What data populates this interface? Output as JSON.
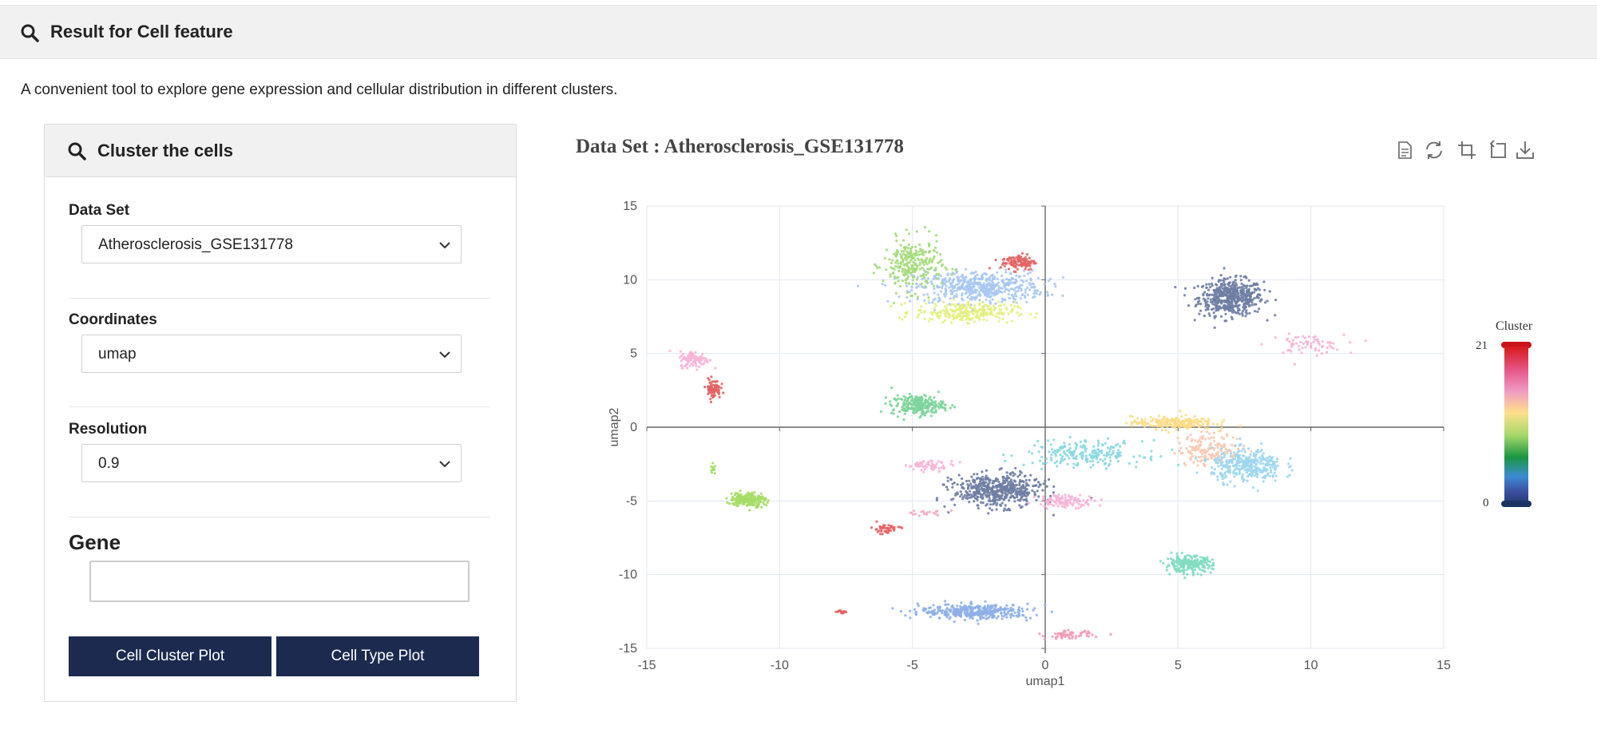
{
  "header": {
    "title": "Result for Cell feature",
    "icon": "search-icon"
  },
  "intro": "A convenient tool to explore gene expression and cellular distribution in different clusters.",
  "panel": {
    "title": "Cluster the cells",
    "icon": "search-icon",
    "fields": [
      {
        "label": "Data Set",
        "value": "Atherosclerosis_GSE131778"
      },
      {
        "label": "Coordinates",
        "value": "umap"
      },
      {
        "label": "Resolution",
        "value": "0.9"
      }
    ],
    "gene": {
      "label": "Gene",
      "value": "",
      "placeholder": ""
    },
    "buttons": {
      "cluster_plot": "Cell Cluster Plot",
      "type_plot": "Cell Type Plot"
    }
  },
  "plot": {
    "title": "Data Set : Atherosclerosis_GSE131778",
    "toolbox": [
      "data-view-icon",
      "restore-icon",
      "zoom-icon",
      "zoom-reset-icon",
      "download-icon"
    ],
    "legend": {
      "title": "Cluster",
      "max": "21",
      "min": "0"
    }
  },
  "chart_data": {
    "type": "scatter",
    "xlabel": "umap1",
    "ylabel": "umap2",
    "xlim": [
      -15,
      15
    ],
    "ylim": [
      -15,
      15
    ],
    "xticks": [
      "-15",
      "-10",
      "-5",
      "0",
      "5",
      "10",
      "15"
    ],
    "yticks": [
      "15",
      "10",
      "5",
      "0",
      "-5",
      "-10",
      "-15"
    ],
    "grid": true,
    "legend": "visualMap-right",
    "color_scale": [
      "#233a6b",
      "#3b4fa0",
      "#3b8bd3",
      "#1a9641",
      "#a6d96a",
      "#fee08b",
      "#ef9ac3",
      "#e75c8f",
      "#d7191c"
    ],
    "clusters": [
      {
        "cx": 7.0,
        "cy": 8.8,
        "sx": 1.1,
        "sy": 1.1,
        "n": 520,
        "color": "#6e7da3"
      },
      {
        "cx": 9.8,
        "cy": 5.6,
        "sx": 1.3,
        "sy": 0.6,
        "n": 70,
        "color": "#f7b4d4"
      },
      {
        "cx": -2.5,
        "cy": 9.5,
        "sx": 2.2,
        "sy": 1.0,
        "n": 520,
        "color": "#a7c8f2"
      },
      {
        "cx": -5.0,
        "cy": 11.0,
        "sx": 1.0,
        "sy": 1.6,
        "n": 260,
        "color": "#a3dc7a"
      },
      {
        "cx": -3.0,
        "cy": 7.8,
        "sx": 1.7,
        "sy": 0.6,
        "n": 260,
        "color": "#e3ef80"
      },
      {
        "cx": -1.0,
        "cy": 11.2,
        "sx": 0.6,
        "sy": 0.5,
        "n": 110,
        "color": "#e36464"
      },
      {
        "cx": -13.2,
        "cy": 4.6,
        "sx": 0.5,
        "sy": 0.5,
        "n": 110,
        "color": "#f8b5d8"
      },
      {
        "cx": -12.5,
        "cy": 2.6,
        "sx": 0.25,
        "sy": 0.6,
        "n": 80,
        "color": "#e36464"
      },
      {
        "cx": -4.8,
        "cy": 1.5,
        "sx": 0.9,
        "sy": 0.6,
        "n": 230,
        "color": "#7cd49a"
      },
      {
        "cx": 4.8,
        "cy": 0.3,
        "sx": 1.4,
        "sy": 0.4,
        "n": 220,
        "color": "#f9dd86"
      },
      {
        "cx": 6.2,
        "cy": -1.5,
        "sx": 1.1,
        "sy": 1.0,
        "n": 170,
        "color": "#f8c9b1"
      },
      {
        "cx": 7.6,
        "cy": -2.6,
        "sx": 1.2,
        "sy": 1.0,
        "n": 340,
        "color": "#9dd6ee"
      },
      {
        "cx": 1.5,
        "cy": -1.8,
        "sx": 2.0,
        "sy": 0.8,
        "n": 220,
        "color": "#8ad7e1"
      },
      {
        "cx": -1.8,
        "cy": -4.3,
        "sx": 1.5,
        "sy": 1.0,
        "n": 520,
        "color": "#6e7da3"
      },
      {
        "cx": 0.8,
        "cy": -5.0,
        "sx": 1.0,
        "sy": 0.4,
        "n": 120,
        "color": "#f8b5d8"
      },
      {
        "cx": -4.3,
        "cy": -2.6,
        "sx": 0.8,
        "sy": 0.3,
        "n": 60,
        "color": "#f8b5d8"
      },
      {
        "cx": -11.2,
        "cy": -4.9,
        "sx": 0.6,
        "sy": 0.45,
        "n": 200,
        "color": "#a6dd66"
      },
      {
        "cx": -6.0,
        "cy": -6.9,
        "sx": 0.5,
        "sy": 0.3,
        "n": 45,
        "color": "#e36464"
      },
      {
        "cx": -4.6,
        "cy": -5.8,
        "sx": 0.8,
        "sy": 0.2,
        "n": 20,
        "color": "#f6a9c4"
      },
      {
        "cx": 5.4,
        "cy": -9.3,
        "sx": 0.8,
        "sy": 0.5,
        "n": 230,
        "color": "#82ddc0"
      },
      {
        "cx": -2.6,
        "cy": -12.5,
        "sx": 1.9,
        "sy": 0.45,
        "n": 380,
        "color": "#8fb0e6"
      },
      {
        "cx": 0.9,
        "cy": -14.1,
        "sx": 0.8,
        "sy": 0.25,
        "n": 60,
        "color": "#f49cb5"
      },
      {
        "cx": -7.7,
        "cy": -12.5,
        "sx": 0.2,
        "sy": 0.1,
        "n": 14,
        "color": "#e36464"
      },
      {
        "cx": -12.5,
        "cy": -2.9,
        "sx": 0.1,
        "sy": 0.3,
        "n": 12,
        "color": "#a6dd66"
      }
    ]
  }
}
